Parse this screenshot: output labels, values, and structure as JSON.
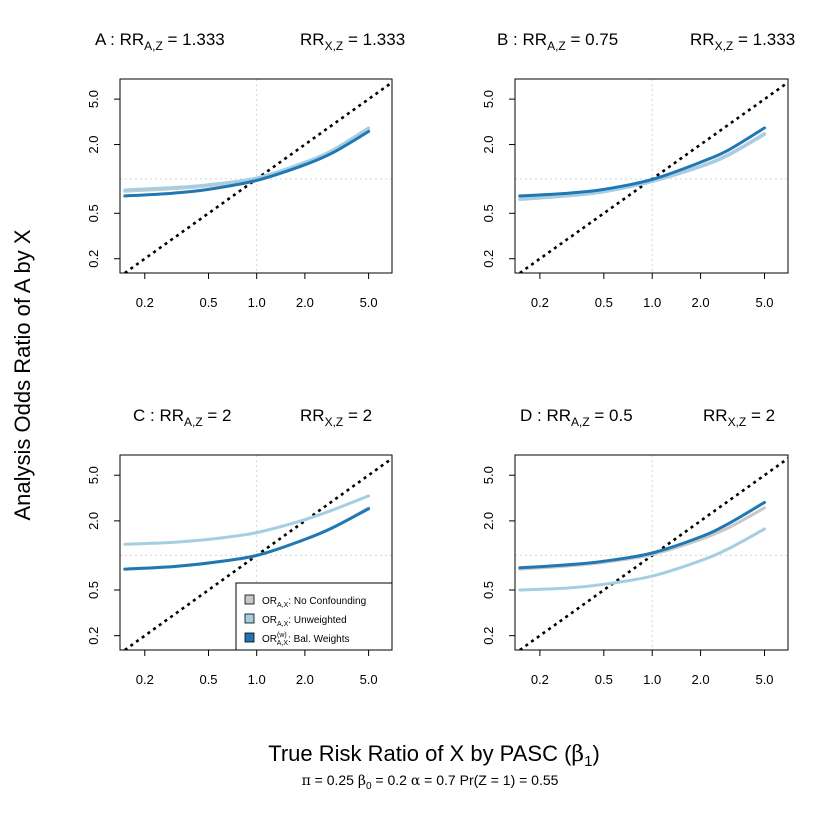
{
  "figure": {
    "xlabel": "True Risk Ratio of X by PASC (",
    "xlabel_symbol": "β",
    "xlabel_symbol_sub": "1",
    "xlabel_end": ")",
    "ylabel": "Analysis Odds Ratio of A by X",
    "subtitle": [
      {
        "sym": "π",
        "text": " = 0.25"
      },
      {
        "sym": "β",
        "sub": "0",
        "text": " = 0.2"
      },
      {
        "sym": "α",
        "text": " = 0.7"
      },
      {
        "sym": "",
        "text": "Pr(Z = 1) = 0.55"
      }
    ]
  },
  "legend": {
    "entries": [
      {
        "name": "OR",
        "sub": "A,X",
        "sup": "",
        "desc": ":  No Confounding",
        "color": "#c8c8c8"
      },
      {
        "name": "OR",
        "sub": "A,X",
        "sup": "",
        "desc": ":  Unweighted",
        "color": "#a6cee3"
      },
      {
        "name": "OR",
        "sub": "A,X",
        "sup": "(w)",
        "desc": ":  Bal. Weights",
        "color": "#1f78b4"
      }
    ]
  },
  "chart_data": [
    {
      "type": "line",
      "panel": "A",
      "title": {
        "letter": "A :",
        "rr1_sub": "A,Z",
        "rr1_val": " = 1.333",
        "rr2_sub": "X,Z",
        "rr2_val": " = 1.333",
        "rr": "RR"
      },
      "x_scale": "log",
      "y_scale": "log",
      "xlim": [
        0.14,
        7.0
      ],
      "ylim": [
        0.15,
        7.5
      ],
      "x_ticks": [
        0.2,
        0.5,
        1.0,
        2.0,
        5.0
      ],
      "x_tick_labels": [
        "0.2",
        "0.5",
        "1.0",
        "2.0",
        "5.0"
      ],
      "y_ticks": [
        0.2,
        0.5,
        2.0,
        5.0
      ],
      "y_tick_labels": [
        "0.2",
        "0.5",
        "2.0",
        "5.0"
      ],
      "reference_line": "y = x",
      "grid": {
        "vline": 1,
        "hline": 1
      },
      "series": [
        {
          "name": "No Confounding",
          "color": "#c8c8c8",
          "x": [
            0.15,
            0.3,
            0.5,
            1.0,
            2.0,
            3.0,
            5.0
          ],
          "y": [
            0.78,
            0.82,
            0.87,
            1.0,
            1.36,
            1.75,
            2.68
          ]
        },
        {
          "name": "Unweighted",
          "color": "#a6cee3",
          "x": [
            0.15,
            0.3,
            0.5,
            1.0,
            2.0,
            3.0,
            5.0
          ],
          "y": [
            0.8,
            0.84,
            0.89,
            1.02,
            1.4,
            1.8,
            2.8
          ]
        },
        {
          "name": "Bal. Weights",
          "color": "#1f78b4",
          "x": [
            0.15,
            0.3,
            0.5,
            1.0,
            2.0,
            3.0,
            5.0
          ],
          "y": [
            0.71,
            0.75,
            0.81,
            0.97,
            1.33,
            1.7,
            2.6
          ]
        }
      ]
    },
    {
      "type": "line",
      "panel": "B",
      "title": {
        "letter": "B :",
        "rr1_sub": "A,Z",
        "rr1_val": " = 0.75",
        "rr2_sub": "X,Z",
        "rr2_val": " = 1.333",
        "rr": "RR"
      },
      "x_scale": "log",
      "y_scale": "log",
      "xlim": [
        0.14,
        7.0
      ],
      "ylim": [
        0.15,
        7.5
      ],
      "x_ticks": [
        0.2,
        0.5,
        1.0,
        2.0,
        5.0
      ],
      "x_tick_labels": [
        "0.2",
        "0.5",
        "1.0",
        "2.0",
        "5.0"
      ],
      "y_ticks": [
        0.2,
        0.5,
        2.0,
        5.0
      ],
      "y_tick_labels": [
        "0.2",
        "0.5",
        "2.0",
        "5.0"
      ],
      "reference_line": "y = x",
      "grid": {
        "vline": 1,
        "hline": 1
      },
      "series": [
        {
          "name": "No Confounding",
          "color": "#c8c8c8",
          "x": [
            0.15,
            0.3,
            0.5,
            1.0,
            2.0,
            3.0,
            5.0
          ],
          "y": [
            0.67,
            0.72,
            0.78,
            0.96,
            1.3,
            1.65,
            2.5
          ]
        },
        {
          "name": "Unweighted",
          "color": "#a6cee3",
          "x": [
            0.15,
            0.3,
            0.5,
            1.0,
            2.0,
            3.0,
            5.0
          ],
          "y": [
            0.66,
            0.71,
            0.77,
            0.95,
            1.28,
            1.62,
            2.45
          ]
        },
        {
          "name": "Bal. Weights",
          "color": "#1f78b4",
          "x": [
            0.15,
            0.3,
            0.5,
            1.0,
            2.0,
            3.0,
            5.0
          ],
          "y": [
            0.71,
            0.75,
            0.81,
            0.99,
            1.4,
            1.8,
            2.8
          ]
        }
      ]
    },
    {
      "type": "line",
      "panel": "C",
      "title": {
        "letter": "C :",
        "rr1_sub": "A,Z",
        "rr1_val": " = 2",
        "rr2_sub": "X,Z",
        "rr2_val": " = 2",
        "rr": "RR"
      },
      "x_scale": "log",
      "y_scale": "log",
      "xlim": [
        0.14,
        7.0
      ],
      "ylim": [
        0.15,
        7.5
      ],
      "x_ticks": [
        0.2,
        0.5,
        1.0,
        2.0,
        5.0
      ],
      "x_tick_labels": [
        "0.2",
        "0.5",
        "1.0",
        "2.0",
        "5.0"
      ],
      "y_ticks": [
        0.2,
        0.5,
        2.0,
        5.0
      ],
      "y_tick_labels": [
        "0.2",
        "0.5",
        "2.0",
        "5.0"
      ],
      "reference_line": "y = x",
      "grid": {
        "vline": 1,
        "hline": 1
      },
      "series": [
        {
          "name": "No Confounding",
          "color": "#c8c8c8",
          "x": [
            0.15,
            0.3,
            0.5,
            1.0,
            2.0,
            3.0,
            5.0
          ],
          "y": [
            0.76,
            0.8,
            0.86,
            1.0,
            1.38,
            1.75,
            2.6
          ]
        },
        {
          "name": "Unweighted",
          "color": "#a6cee3",
          "x": [
            0.15,
            0.3,
            0.5,
            1.0,
            2.0,
            3.0,
            5.0
          ],
          "y": [
            1.25,
            1.3,
            1.38,
            1.58,
            2.05,
            2.5,
            3.3
          ]
        },
        {
          "name": "Bal. Weights",
          "color": "#1f78b4",
          "x": [
            0.15,
            0.3,
            0.5,
            1.0,
            2.0,
            3.0,
            5.0
          ],
          "y": [
            0.76,
            0.8,
            0.86,
            1.0,
            1.38,
            1.75,
            2.55
          ]
        }
      ]
    },
    {
      "type": "line",
      "panel": "D",
      "title": {
        "letter": "D :",
        "rr1_sub": "A,Z",
        "rr1_val": " = 0.5",
        "rr2_sub": "X,Z",
        "rr2_val": " = 2",
        "rr": "RR"
      },
      "x_scale": "log",
      "y_scale": "log",
      "xlim": [
        0.14,
        7.0
      ],
      "ylim": [
        0.15,
        7.5
      ],
      "x_ticks": [
        0.2,
        0.5,
        1.0,
        2.0,
        5.0
      ],
      "x_tick_labels": [
        "0.2",
        "0.5",
        "1.0",
        "2.0",
        "5.0"
      ],
      "y_ticks": [
        0.2,
        0.5,
        2.0,
        5.0
      ],
      "y_tick_labels": [
        "0.2",
        "0.5",
        "2.0",
        "5.0"
      ],
      "reference_line": "y = x",
      "grid": {
        "vline": 1,
        "hline": 1
      },
      "series": [
        {
          "name": "No Confounding",
          "color": "#c8c8c8",
          "x": [
            0.15,
            0.3,
            0.5,
            1.0,
            2.0,
            3.0,
            5.0
          ],
          "y": [
            0.76,
            0.81,
            0.87,
            1.02,
            1.38,
            1.75,
            2.6
          ]
        },
        {
          "name": "Unweighted",
          "color": "#a6cee3",
          "x": [
            0.15,
            0.3,
            0.5,
            1.0,
            2.0,
            3.0,
            5.0
          ],
          "y": [
            0.5,
            0.52,
            0.56,
            0.66,
            0.9,
            1.15,
            1.7
          ]
        },
        {
          "name": "Bal. Weights",
          "color": "#1f78b4",
          "x": [
            0.15,
            0.3,
            0.5,
            1.0,
            2.0,
            3.0,
            5.0
          ],
          "y": [
            0.78,
            0.83,
            0.89,
            1.05,
            1.45,
            1.9,
            2.9
          ]
        }
      ]
    }
  ]
}
